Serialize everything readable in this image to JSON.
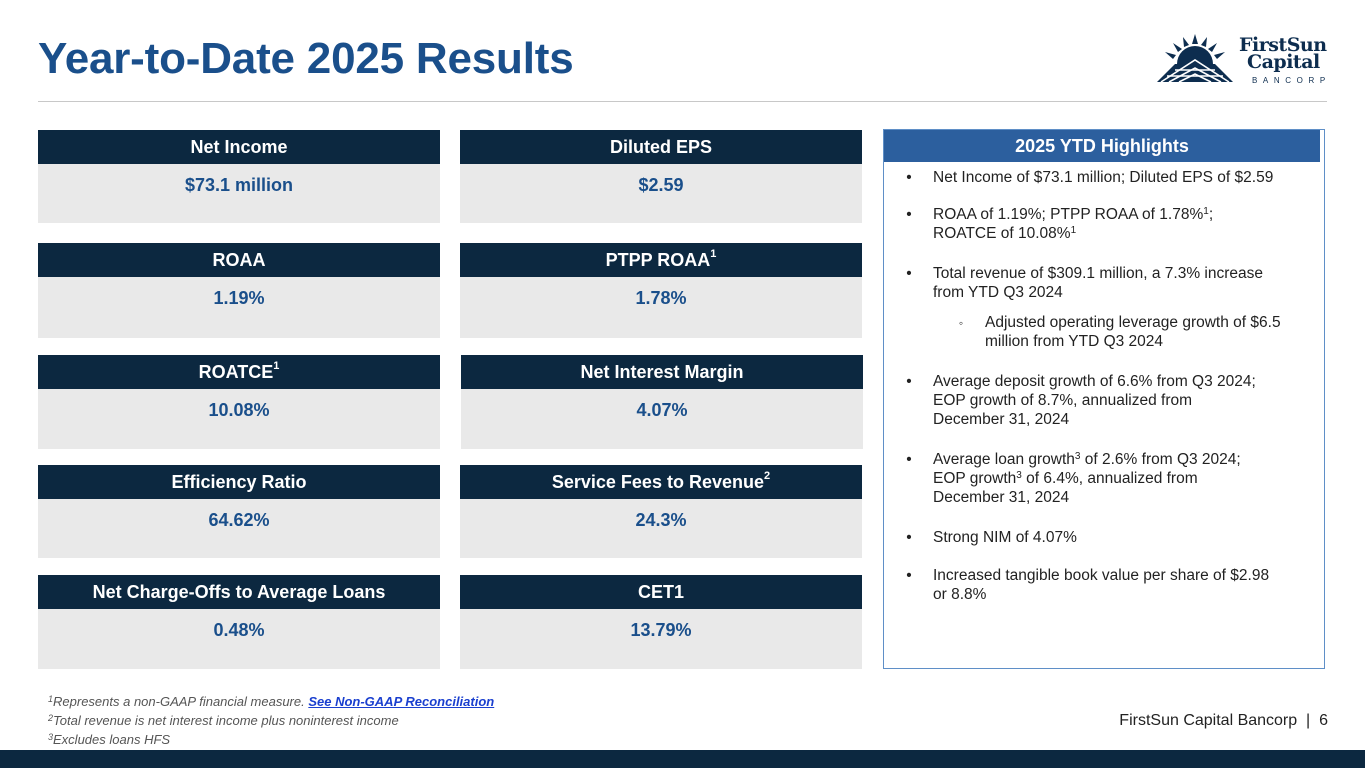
{
  "title": "Year-to-Date 2025 Results",
  "logo": {
    "line1": "FirstSun",
    "line2": "Capital",
    "line3": "BANCORP"
  },
  "metrics": [
    {
      "label": "Net Income",
      "sup": "",
      "value": "$73.1 million"
    },
    {
      "label": "Diluted EPS",
      "sup": "",
      "value": "$2.59"
    },
    {
      "label": "ROAA",
      "sup": "",
      "value": "1.19%"
    },
    {
      "label": "PTPP ROAA",
      "sup": "1",
      "value": "1.78%"
    },
    {
      "label": "ROATCE",
      "sup": "1",
      "value": "10.08%"
    },
    {
      "label": "Net Interest Margin",
      "sup": "",
      "value": "4.07%"
    },
    {
      "label": "Efficiency Ratio",
      "sup": "",
      "value": "64.62%"
    },
    {
      "label": "Service Fees to Revenue",
      "sup": "2",
      "value": "24.3%"
    },
    {
      "label": "Net Charge-Offs to Average Loans",
      "sup": "",
      "value": "0.48%"
    },
    {
      "label": "CET1",
      "sup": "",
      "value": "13.79%"
    }
  ],
  "highlights": {
    "heading": "2025 YTD Highlights",
    "bullet": "•",
    "sub_bullet": "◦",
    "items": [
      {
        "lines": [
          "Net Income of $73.1 million; Diluted EPS of $2.59"
        ]
      },
      {
        "line1_a": "ROAA of 1.19%; PTPP ROAA of 1.78%",
        "line1_sup": "1",
        "line1_b": ";",
        "line2_a": "ROATCE of 10.08%",
        "line2_sup": "1"
      },
      {
        "lines": [
          "Total revenue of $309.1 million, a 7.3% increase",
          "from YTD Q3 2024"
        ]
      },
      {
        "lines": [
          "Adjusted operating leverage growth of $6.5",
          "million from YTD Q3 2024"
        ]
      },
      {
        "lines": [
          "Average deposit growth of 6.6% from Q3 2024;",
          "EOP growth of 8.7%, annualized from",
          "December 31, 2024"
        ]
      },
      {
        "line1_a": "Average loan growth",
        "line1_sup": "3",
        "line1_b": " of 2.6% from Q3 2024;",
        "line2_a": "EOP growth",
        "line2_sup": "3",
        "line2_b": " of 6.4%, annualized from",
        "line3": "December 31, 2024"
      },
      {
        "lines": [
          "Strong NIM of 4.07%"
        ]
      },
      {
        "lines": [
          "Increased tangible book value per share of $2.98",
          "or 8.8%"
        ]
      }
    ]
  },
  "footnotes": {
    "f1_num": "1",
    "f1_text": "Represents a non-GAAP financial measure. ",
    "f1_link": "See Non-GAAP Reconciliation",
    "f2_num": "2",
    "f2_text": "Total revenue is net interest income plus noninterest income",
    "f3_num": "3",
    "f3_text": "Excludes loans HFS"
  },
  "footer": "FirstSun Capital Bancorp  |  6"
}
